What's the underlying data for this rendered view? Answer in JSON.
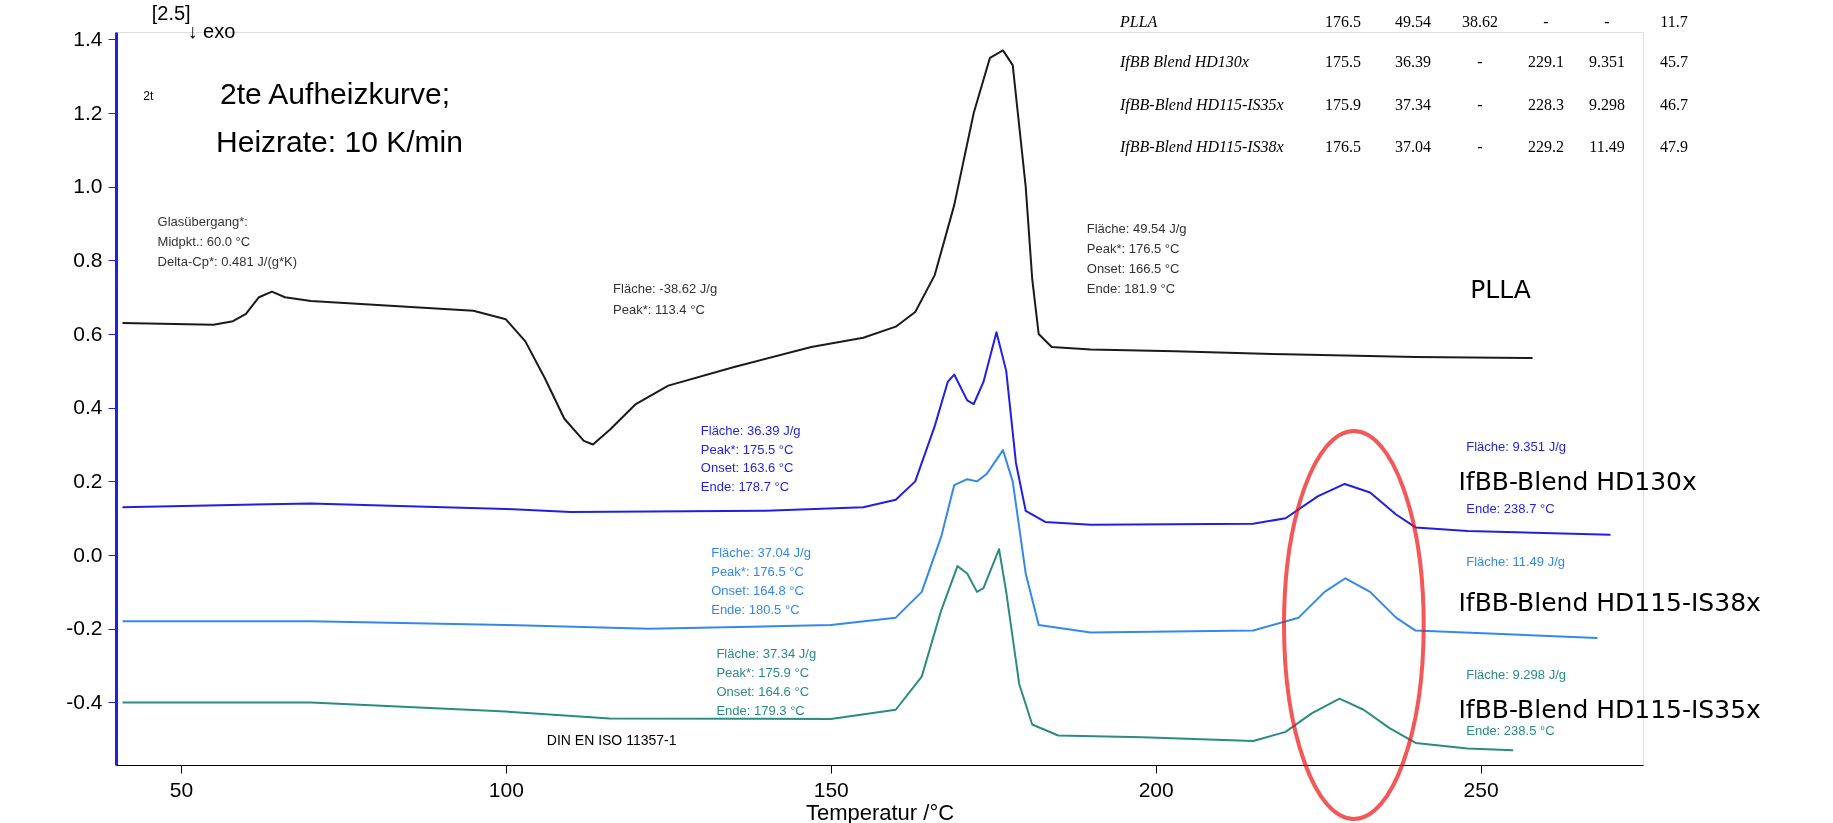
{
  "chart_data": {
    "type": "line",
    "xlabel": "Temperatur /°C",
    "xlim": [
      40,
      275
    ],
    "ylim": [
      -0.57,
      1.42
    ],
    "xticks": [
      50,
      100,
      150,
      200,
      250
    ],
    "yticks": [
      {
        "value": -0.4,
        "label": "-0.4"
      },
      {
        "value": -0.2,
        "label": "-0.2"
      },
      {
        "value": 0,
        "label": "0.0"
      },
      {
        "value": 0.2,
        "label": "0.2"
      },
      {
        "value": 0.4,
        "label": "0.4"
      },
      {
        "value": 0.6,
        "label": "0.6"
      },
      {
        "value": 0.8,
        "label": "0.8"
      },
      {
        "value": 1.0,
        "label": "1.0"
      },
      {
        "value": 1.2,
        "label": "1.2"
      },
      {
        "value": 1.4,
        "label": "1.4"
      }
    ],
    "grid": false,
    "legend": false,
    "marker": "none",
    "line_style": "solid",
    "series": [
      {
        "name": "PLLA",
        "color": "#1a1a1a",
        "x": [
          41,
          55,
          58,
          60,
          62,
          64,
          66,
          70,
          95,
          100,
          103,
          106,
          109,
          112,
          113.4,
          116,
          120,
          125,
          135,
          147,
          155,
          160,
          163,
          166,
          169,
          172,
          174.5,
          176.5,
          178,
          180,
          181,
          182,
          184,
          190,
          203,
          220,
          240,
          258
        ],
        "values": [
          0.63,
          0.625,
          0.635,
          0.655,
          0.7,
          0.715,
          0.7,
          0.69,
          0.663,
          0.64,
          0.58,
          0.48,
          0.37,
          0.31,
          0.3,
          0.34,
          0.41,
          0.46,
          0.51,
          0.565,
          0.59,
          0.62,
          0.66,
          0.76,
          0.95,
          1.2,
          1.35,
          1.37,
          1.33,
          1.0,
          0.75,
          0.6,
          0.565,
          0.558,
          0.553,
          0.545,
          0.538,
          0.535
        ]
      },
      {
        "name": "IfBB-Blend HD130x",
        "color": "#1f1fe6",
        "x": [
          41,
          70,
          100,
          110,
          140,
          155,
          160,
          163,
          166,
          168,
          169,
          171,
          172,
          173.5,
          175.5,
          177,
          178.5,
          180,
          183,
          190,
          215,
          220,
          225,
          229.1,
          233,
          237,
          240,
          248,
          270
        ],
        "values": [
          0.13,
          0.14,
          0.125,
          0.117,
          0.12,
          0.13,
          0.15,
          0.2,
          0.35,
          0.47,
          0.49,
          0.42,
          0.41,
          0.47,
          0.605,
          0.5,
          0.25,
          0.12,
          0.09,
          0.082,
          0.085,
          0.1,
          0.16,
          0.193,
          0.17,
          0.11,
          0.075,
          0.065,
          0.055
        ]
      },
      {
        "name": "IfBB-Blend HD115-IS38x",
        "color": "#3388ee",
        "x": [
          41,
          70,
          100,
          122,
          150,
          160,
          164,
          167,
          169,
          171,
          172.5,
          174,
          176.5,
          178,
          180,
          182,
          190,
          215,
          222,
          226,
          229.2,
          233,
          237,
          240,
          268
        ],
        "values": [
          -0.18,
          -0.18,
          -0.19,
          -0.2,
          -0.19,
          -0.17,
          -0.1,
          0.05,
          0.19,
          0.206,
          0.2,
          0.22,
          0.285,
          0.2,
          -0.05,
          -0.19,
          -0.21,
          -0.205,
          -0.17,
          -0.1,
          -0.063,
          -0.1,
          -0.17,
          -0.205,
          -0.225
        ]
      },
      {
        "name": "IfBB-Blend HD115-IS35x",
        "color": "#2a8c80",
        "x": [
          41,
          70,
          100,
          116,
          150,
          160,
          164,
          167,
          169.5,
          171,
          172.5,
          173.5,
          175.9,
          177,
          179,
          181,
          185,
          198,
          215,
          220,
          224,
          228.3,
          232,
          236,
          240,
          248,
          255
        ],
        "values": [
          -0.4,
          -0.4,
          -0.425,
          -0.444,
          -0.445,
          -0.42,
          -0.33,
          -0.15,
          -0.03,
          -0.05,
          -0.1,
          -0.09,
          0.016,
          -0.1,
          -0.35,
          -0.46,
          -0.49,
          -0.495,
          -0.505,
          -0.48,
          -0.43,
          -0.39,
          -0.42,
          -0.47,
          -0.51,
          -0.525,
          -0.53
        ]
      }
    ],
    "annotations": [
      "[2.5]",
      "↓ exo",
      "2t",
      "2te Aufheizkurve;",
      "Heizrate: 10 K/min",
      "Glasübergang*:",
      "Midpkt.: 60.0 °C",
      "Delta-Cp*: 0.481 J/(g*K)",
      "Fläche: -38.62 J/g",
      "Peak*: 113.4 °C",
      "Fläche: 49.54 J/g",
      "Peak*: 176.5 °C",
      "Onset: 166.5 °C",
      "Ende: 181.9 °C",
      "Fläche: 36.39 J/g",
      "Peak*: 175.5 °C",
      "Onset: 163.6 °C",
      "Ende: 178.7 °C",
      "Fläche: 9.351 J/g",
      "Ende: 238.7 °C",
      "Fläche: 37.04 J/g",
      "Peak*: 176.5 °C",
      "Onset: 164.8 °C",
      "Ende: 180.5 °C",
      "Fläche: 11.49 J/g",
      "Fläche: 37.34 J/g",
      "Peak*: 175.9 °C",
      "Onset: 164.6 °C",
      "Ende: 179.3 °C",
      "Fläche: 9.298 J/g",
      "Ende: 238.5 °C",
      "DIN EN ISO 11357-1",
      "PLLA",
      "176.5",
      "49.54",
      "38.62",
      "-",
      "-",
      "11.7",
      "IfBB Blend HD130x",
      "175.5",
      "36.39",
      "-",
      "229.1",
      "9.351",
      "45.7",
      "IfBB-Blend HD115-IS35x",
      "175.9",
      "37.34",
      "-",
      "228.3",
      "9.298",
      "46.7",
      "IfBB-Blend HD115-IS38x",
      "176.5",
      "37.04",
      "-",
      "229.2",
      "11.49",
      "47.9"
    ]
  }
}
